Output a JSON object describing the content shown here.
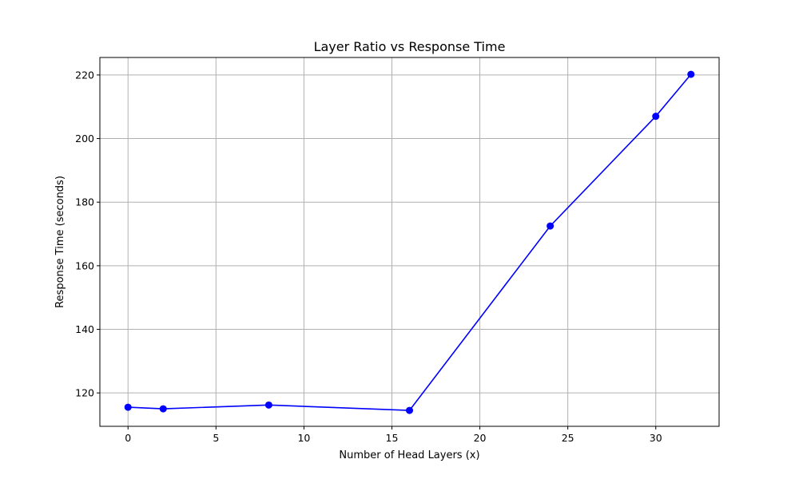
{
  "chart_data": {
    "type": "line",
    "title": "Layer Ratio vs Response Time",
    "xlabel": "Number of Head Layers (x)",
    "ylabel": "Response Time (seconds)",
    "xlim": [
      -1.6,
      33.6
    ],
    "ylim": [
      109.5,
      225.5
    ],
    "xticks": [
      0,
      5,
      10,
      15,
      20,
      25,
      30
    ],
    "yticks": [
      120,
      140,
      160,
      180,
      200,
      220
    ],
    "grid": true,
    "color": "#0000ff",
    "marker": "circle",
    "x": [
      0,
      2,
      8,
      16,
      24,
      30,
      32
    ],
    "y": [
      115.5,
      115.0,
      116.2,
      114.5,
      172.5,
      207.0,
      220.2
    ]
  }
}
